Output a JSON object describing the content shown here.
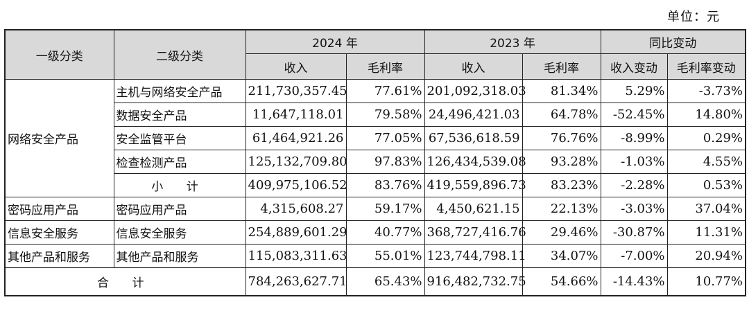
{
  "unit_label": "单位：元",
  "header": {
    "col_level1": "一级分类",
    "col_level2": "二级分类",
    "year_2024": "2024 年",
    "year_2023": "2023 年",
    "yoy": "同比变动",
    "revenue": "收入",
    "gross_margin": "毛利率",
    "revenue_change": "收入变动",
    "margin_change": "毛利率变动"
  },
  "groups": {
    "network": {
      "label": "网络安全产品",
      "rows": [
        {
          "sub": "主机与网络安全产品",
          "r2024": "211,730,357.45",
          "m2024": "77.61%",
          "r2023": "201,092,318.03",
          "m2023": "81.34%",
          "rc": "5.29%",
          "mc": "-3.73%"
        },
        {
          "sub": "数据安全产品",
          "r2024": "11,647,118.01",
          "m2024": "79.58%",
          "r2023": "24,496,421.03",
          "m2023": "64.78%",
          "rc": "-52.45%",
          "mc": "14.80%"
        },
        {
          "sub": "安全监管平台",
          "r2024": "61,464,921.26",
          "m2024": "77.05%",
          "r2023": "67,536,618.59",
          "m2023": "76.76%",
          "rc": "-8.99%",
          "mc": "0.29%"
        },
        {
          "sub": "检查检测产品",
          "r2024": "125,132,709.80",
          "m2024": "97.83%",
          "r2023": "126,434,539.08",
          "m2023": "93.28%",
          "rc": "-1.03%",
          "mc": "4.55%"
        },
        {
          "sub": "小 计",
          "r2024": "409,975,106.52",
          "m2024": "83.76%",
          "r2023": "419,559,896.73",
          "m2023": "83.23%",
          "rc": "-2.28%",
          "mc": "0.53%"
        }
      ]
    },
    "crypto": {
      "label": "密码应用产品",
      "sub": "密码应用产品",
      "r2024": "4,315,608.27",
      "m2024": "59.17%",
      "r2023": "4,450,621.15",
      "m2023": "22.13%",
      "rc": "-3.03%",
      "mc": "37.04%"
    },
    "infosec": {
      "label": "信息安全服务",
      "sub": "信息安全服务",
      "r2024": "254,889,601.29",
      "m2024": "40.77%",
      "r2023": "368,727,416.76",
      "m2023": "29.46%",
      "rc": "-30.87%",
      "mc": "11.31%"
    },
    "other": {
      "label": "其他产品和服务",
      "sub": "其他产品和服务",
      "r2024": "115,083,311.63",
      "m2024": "55.01%",
      "r2023": "123,744,798.11",
      "m2023": "34.07%",
      "rc": "-7.00%",
      "mc": "20.94%"
    }
  },
  "total": {
    "label": "合 计",
    "r2024": "784,263,627.71",
    "m2024": "65.43%",
    "r2023": "916,482,732.75",
    "m2023": "54.66%",
    "rc": "-14.43%",
    "mc": "10.77%"
  }
}
